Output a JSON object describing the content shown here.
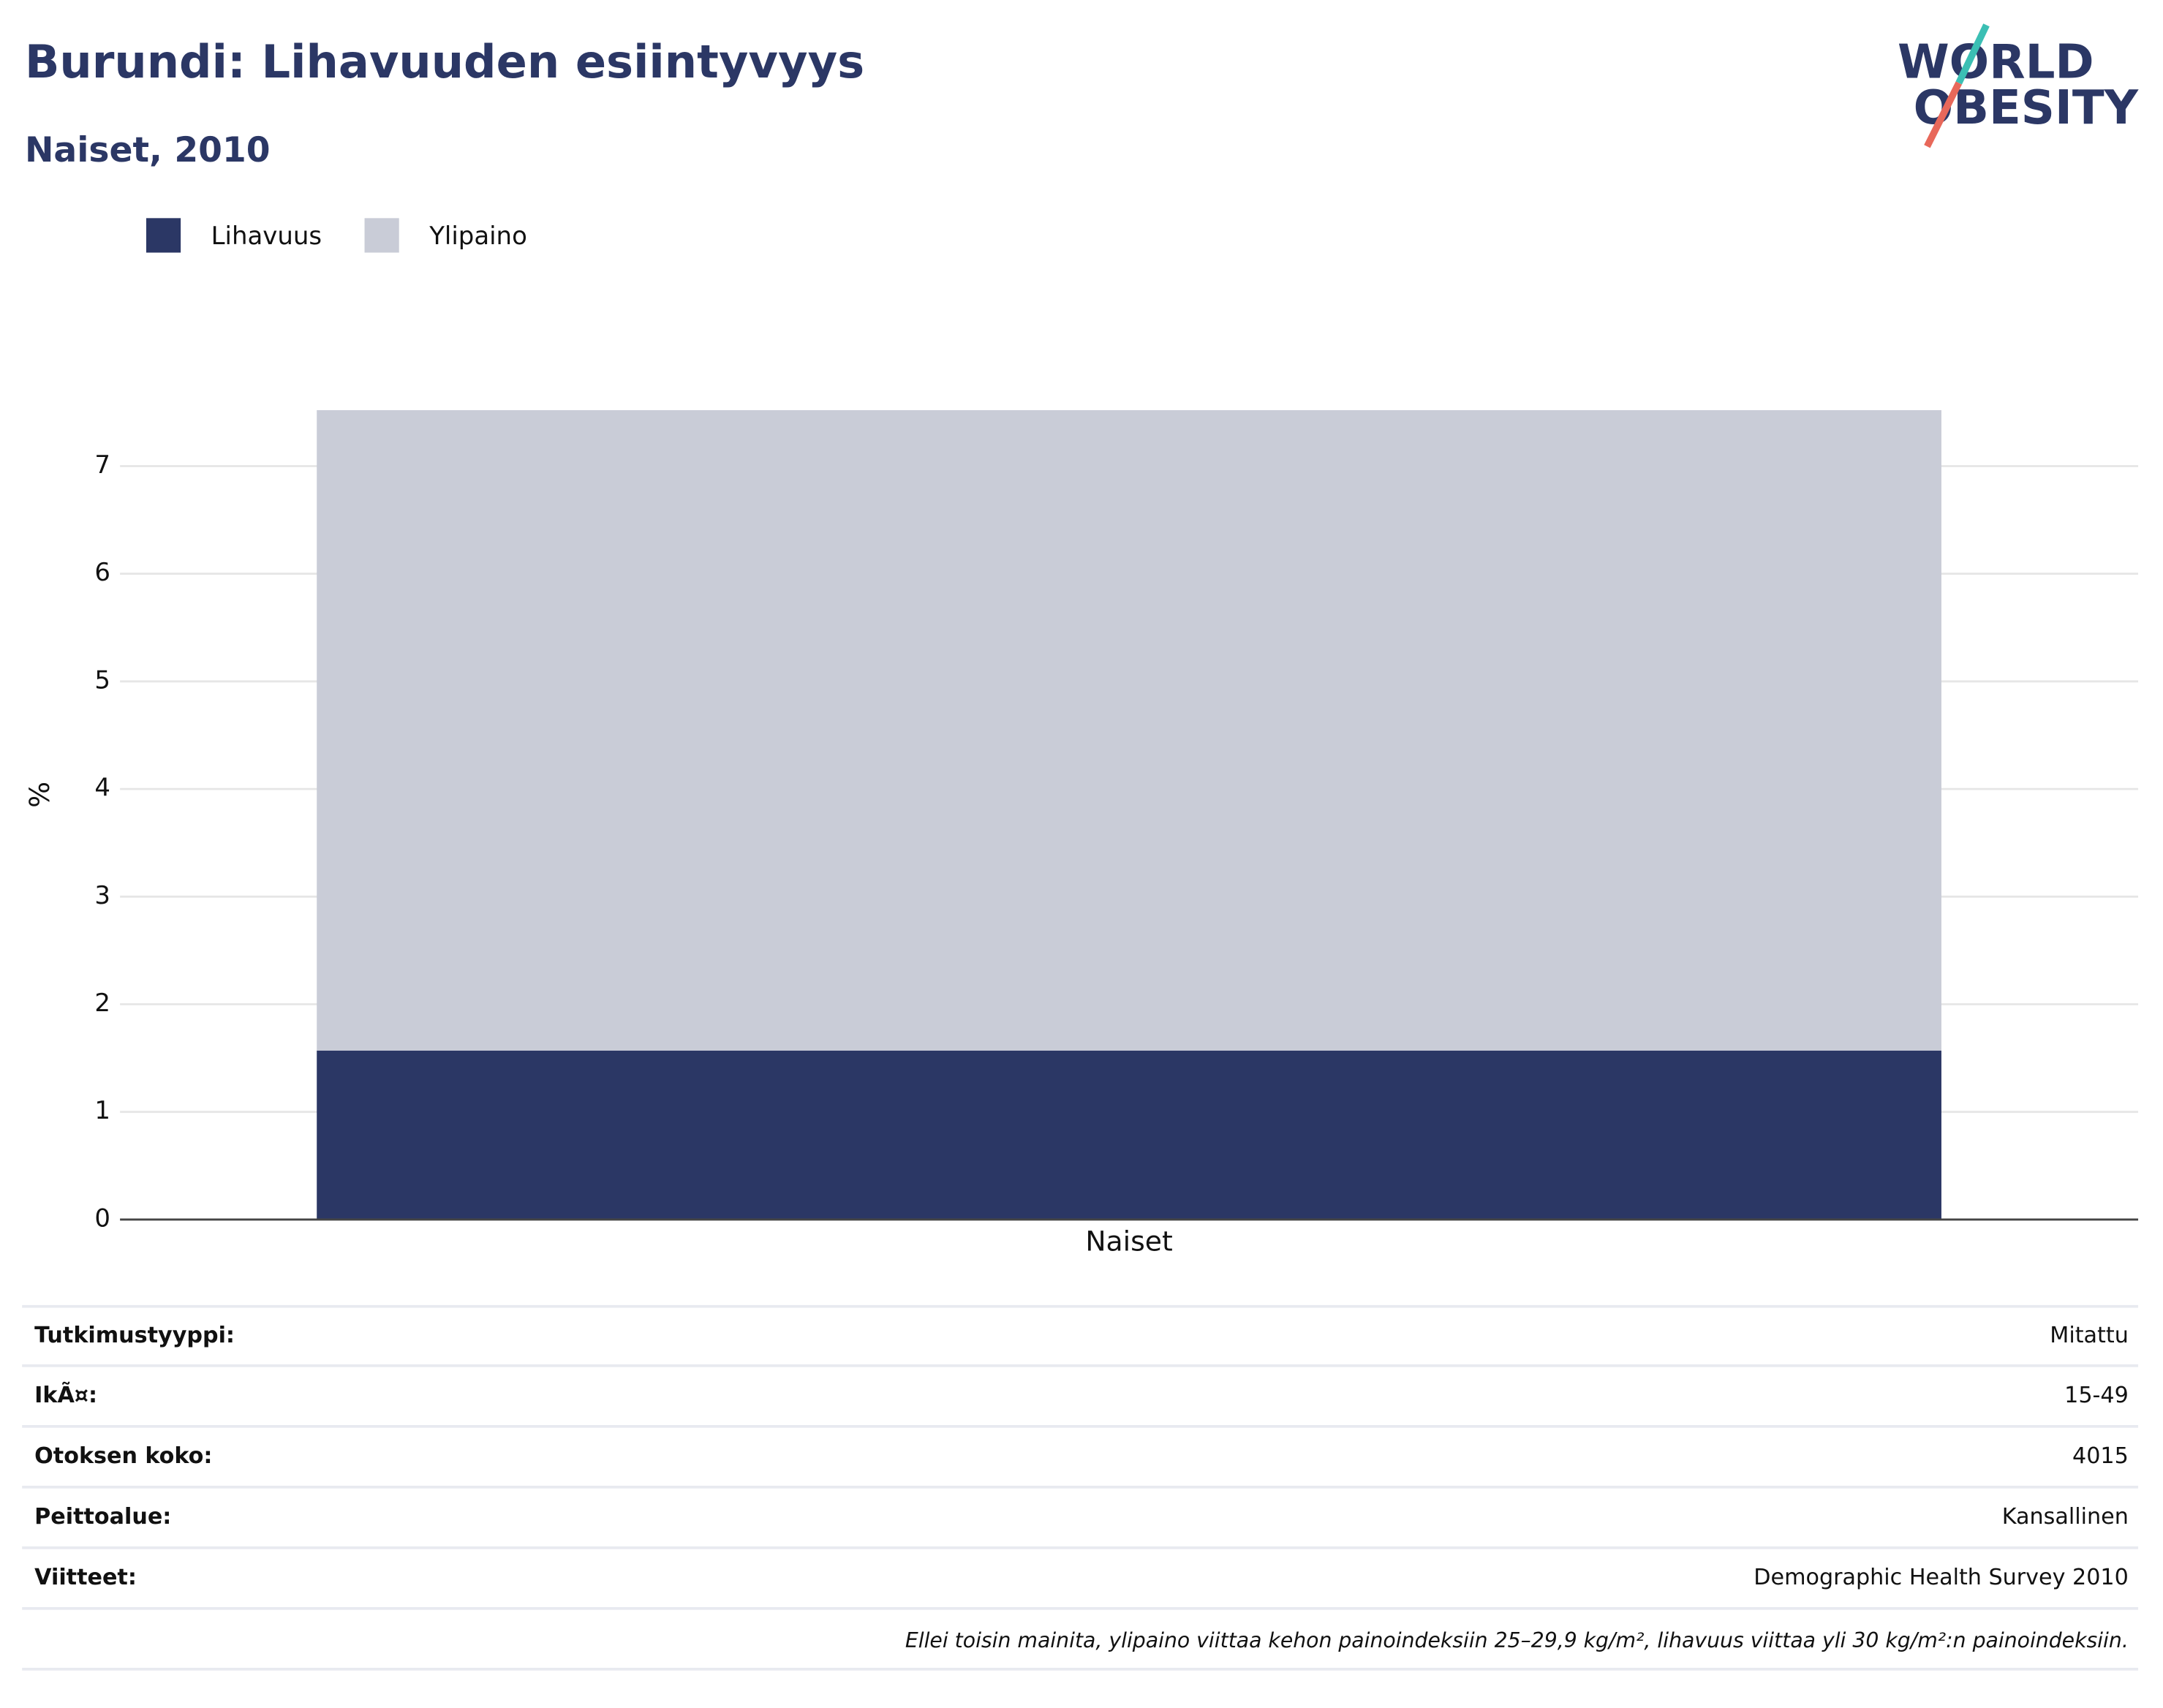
{
  "chart_data": {
    "type": "stacked-bar",
    "title": "Burundi: Lihavuuden esiintyvyys",
    "subtitle": "Naiset, 2010",
    "y_label": "%",
    "categories": [
      "Naiset"
    ],
    "series": [
      {
        "name": "Lihavuus",
        "color": "#2b3765",
        "values": [
          1.57
        ]
      },
      {
        "name": "Ylipaino",
        "color": "#c9ccd7",
        "values": [
          5.95
        ]
      }
    ],
    "ylim": [
      0,
      7.92
    ],
    "yticks": [
      0,
      1,
      2,
      3,
      4,
      5,
      6,
      7
    ],
    "grid": true
  },
  "logo": [
    "WORLD",
    "OBESITY"
  ],
  "table": {
    "rows": [
      [
        "Tutkimustyyppi:",
        "Mitattu"
      ],
      [
        "IkÃ¤:",
        "15-49"
      ],
      [
        "Otoksen koko:",
        "4015"
      ],
      [
        "Peittoalue:",
        "Kansallinen"
      ],
      [
        "Viitteet:",
        "Demographic Health Survey 2010"
      ]
    ],
    "footnote": "Ellei toisin mainita, ylipaino viittaa kehon painoindeksiin 25–29,9 kg/m², lihavuus viittaa yli 30 kg/m²:n painoindeksiin."
  }
}
